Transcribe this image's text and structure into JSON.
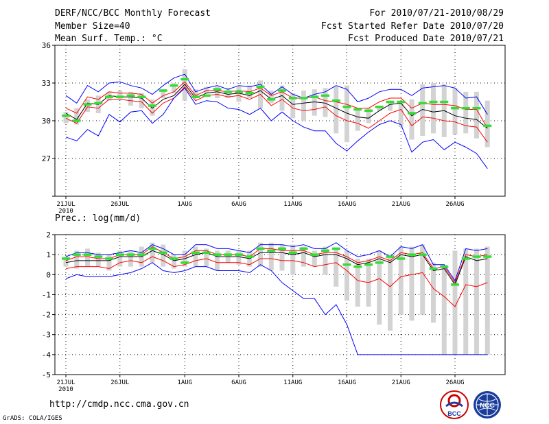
{
  "header": {
    "title": "DERF/NCC/BCC Monthly Forecast",
    "member_size": "Member Size=40",
    "variable": "Mean Surf. Temp.: °C",
    "period": "For 2010/07/21-2010/08/29",
    "start_date": "Fcst Started Refer Date 2010/07/20",
    "produced_date": "Fcst Produced Date 2010/07/21"
  },
  "footer": {
    "url": "http://cmdp.ncc.cma.gov.cn",
    "grads": "GrADS: COLA/IGES",
    "logo_bcc": "BCC",
    "logo_ncc": "NCC"
  },
  "colors": {
    "ensemble_bar": "#d3d3d3",
    "mean": "#000000",
    "spread": "#ff0000",
    "extremes": "#0000ff",
    "climatology": "#33dd33"
  },
  "chart_data": [
    {
      "type": "line",
      "title": "Mean Surf. Temp.: °C",
      "xlabel": "",
      "ylabel": "°C",
      "ylim": [
        24,
        36
      ],
      "yticks": [
        24,
        27,
        30,
        33,
        36
      ],
      "ytick_labels": [
        "",
        "27",
        "30",
        "33",
        "36"
      ],
      "x_tick_labels": [
        {
          "day": 1,
          "label": "21JUL",
          "sub": "2010"
        },
        {
          "day": 6,
          "label": "26JUL"
        },
        {
          "day": 12,
          "label": "1AUG"
        },
        {
          "day": 17,
          "label": "6AUG"
        },
        {
          "day": 22,
          "label": "11AUG"
        },
        {
          "day": 27,
          "label": "16AUG"
        },
        {
          "day": 32,
          "label": "21AUG"
        },
        {
          "day": 37,
          "label": "26AUG"
        }
      ],
      "grid": true,
      "x": [
        1,
        2,
        3,
        4,
        5,
        6,
        7,
        8,
        9,
        10,
        11,
        12,
        13,
        14,
        15,
        16,
        17,
        18,
        19,
        20,
        21,
        22,
        23,
        24,
        25,
        26,
        27,
        28,
        29,
        30,
        31,
        32,
        33,
        34,
        35,
        36,
        37,
        38,
        39,
        40
      ],
      "box_low": [
        29.8,
        29.7,
        30.7,
        30.6,
        31.6,
        31.7,
        31.2,
        31.0,
        30.4,
        31.8,
        32.2,
        31.6,
        32.0,
        32.2,
        31.8,
        31.8,
        31.5,
        31.8,
        31.0,
        31.4,
        30.8,
        30.2,
        30.0,
        30.4,
        30.3,
        29.0,
        28.3,
        29.2,
        29.8,
        30.8,
        30.8,
        29.5,
        28.5,
        28.8,
        29.0,
        28.7,
        28.9,
        29.0,
        28.6,
        27.9
      ],
      "box_high": [
        30.7,
        31.0,
        31.7,
        32.0,
        32.3,
        32.4,
        32.3,
        32.2,
        31.7,
        32.5,
        33.0,
        34.1,
        32.5,
        32.7,
        32.7,
        32.6,
        32.7,
        32.8,
        33.2,
        32.4,
        32.8,
        32.2,
        32.4,
        32.5,
        32.6,
        32.7,
        32.8,
        31.0,
        31.0,
        31.2,
        31.6,
        31.4,
        31.7,
        32.9,
        33.0,
        32.9,
        32.6,
        32.3,
        32.3,
        31.6
      ],
      "series": [
        {
          "name": "ensemble max",
          "color": "#0000ff",
          "values": [
            32.0,
            31.4,
            32.8,
            32.3,
            33.0,
            33.1,
            32.8,
            32.6,
            32.1,
            32.8,
            33.4,
            33.7,
            32.3,
            32.6,
            32.8,
            32.5,
            32.8,
            32.7,
            32.9,
            32.1,
            32.7,
            32.1,
            31.8,
            32.1,
            32.3,
            32.8,
            32.5,
            31.5,
            31.8,
            32.3,
            32.5,
            32.5,
            32.0,
            32.6,
            32.7,
            32.8,
            32.6,
            31.8,
            31.9,
            30.5
          ]
        },
        {
          "name": "ensemble mean + sd",
          "color": "#ff0000",
          "values": [
            31.0,
            30.6,
            31.9,
            31.7,
            32.3,
            32.2,
            32.2,
            32.1,
            31.4,
            32.0,
            32.3,
            33.1,
            32.0,
            32.4,
            32.4,
            32.3,
            32.4,
            32.3,
            32.6,
            32.0,
            32.3,
            31.8,
            31.8,
            31.9,
            31.6,
            31.5,
            31.3,
            31.0,
            31.0,
            31.5,
            31.8,
            31.8,
            31.0,
            31.4,
            31.3,
            31.3,
            31.2,
            30.9,
            30.9,
            29.4
          ]
        },
        {
          "name": "ensemble mean",
          "color": "#000000",
          "values": [
            30.6,
            30.1,
            31.4,
            31.3,
            32.0,
            31.9,
            31.9,
            31.8,
            31.0,
            31.7,
            32.0,
            32.9,
            31.8,
            32.2,
            32.3,
            32.1,
            32.2,
            32.0,
            32.4,
            31.7,
            32.0,
            31.3,
            31.4,
            31.5,
            31.4,
            31.0,
            30.6,
            30.3,
            30.2,
            30.8,
            31.3,
            31.4,
            30.4,
            30.9,
            30.7,
            30.8,
            30.4,
            30.2,
            30.1,
            29.4
          ]
        },
        {
          "name": "ensemble mean - sd",
          "color": "#ff0000",
          "values": [
            30.2,
            29.8,
            31.1,
            31.0,
            31.7,
            31.7,
            31.6,
            31.5,
            30.6,
            31.4,
            31.8,
            32.7,
            31.6,
            32.0,
            32.1,
            31.9,
            32.0,
            31.7,
            32.1,
            31.2,
            31.7,
            31.0,
            30.8,
            30.9,
            31.1,
            30.4,
            30.0,
            29.8,
            29.4,
            30.0,
            30.6,
            30.9,
            29.6,
            30.3,
            30.2,
            30.0,
            29.9,
            29.6,
            29.5,
            28.3
          ]
        },
        {
          "name": "ensemble min",
          "color": "#0000ff",
          "values": [
            28.7,
            28.4,
            29.3,
            28.8,
            30.5,
            29.9,
            30.7,
            30.8,
            29.8,
            30.5,
            31.8,
            32.6,
            31.3,
            31.6,
            31.5,
            31.0,
            30.9,
            30.5,
            31.0,
            30.0,
            30.7,
            30.0,
            29.5,
            29.2,
            29.2,
            28.2,
            27.6,
            28.4,
            29.1,
            29.7,
            30.0,
            29.7,
            27.5,
            28.3,
            28.5,
            27.7,
            28.3,
            27.9,
            27.4,
            26.2
          ]
        },
        {
          "name": "climatology",
          "color": "#33dd33",
          "style": "dash",
          "values": [
            30.4,
            30.0,
            31.3,
            31.4,
            31.9,
            31.9,
            32.0,
            31.9,
            31.2,
            32.4,
            32.8,
            33.3,
            31.9,
            32.0,
            32.5,
            32.3,
            32.3,
            32.2,
            32.7,
            31.7,
            32.4,
            31.8,
            31.8,
            31.9,
            32.0,
            31.6,
            31.1,
            30.9,
            30.8,
            31.1,
            31.5,
            31.5,
            30.6,
            31.4,
            31.5,
            31.5,
            31.0,
            31.0,
            31.0,
            29.6
          ]
        }
      ]
    },
    {
      "type": "line",
      "title": "Prec.: log(mm/d)",
      "xlabel": "",
      "ylabel": "log(mm/d)",
      "ylim": [
        -5,
        2
      ],
      "yticks": [
        -5,
        -4,
        -3,
        -2,
        -1,
        0,
        1,
        2
      ],
      "ytick_labels": [
        "-5",
        "-4",
        "-3",
        "-2",
        "-1",
        "0",
        "1",
        "2"
      ],
      "x_tick_labels": [
        {
          "day": 1,
          "label": "21JUL",
          "sub": "2010"
        },
        {
          "day": 6,
          "label": "26JUL"
        },
        {
          "day": 12,
          "label": "1AUG"
        },
        {
          "day": 17,
          "label": "6AUG"
        },
        {
          "day": 22,
          "label": "11AUG"
        },
        {
          "day": 27,
          "label": "16AUG"
        },
        {
          "day": 32,
          "label": "21AUG"
        },
        {
          "day": 37,
          "label": "26AUG"
        }
      ],
      "grid": true,
      "x": [
        1,
        2,
        3,
        4,
        5,
        6,
        7,
        8,
        9,
        10,
        11,
        12,
        13,
        14,
        15,
        16,
        17,
        18,
        19,
        20,
        21,
        22,
        23,
        24,
        25,
        26,
        27,
        28,
        29,
        30,
        31,
        32,
        33,
        34,
        35,
        36,
        37,
        38,
        39,
        40
      ],
      "box_low": [
        0.4,
        0.3,
        0.4,
        0.4,
        0.2,
        0.4,
        0.4,
        0.4,
        0.6,
        0.4,
        0.3,
        0.4,
        0.4,
        0.4,
        0.2,
        0.6,
        0.5,
        0.4,
        0.4,
        0.2,
        0.2,
        0.0,
        0.4,
        0.4,
        0.0,
        -0.6,
        -1.3,
        -1.6,
        -1.6,
        -2.5,
        -2.8,
        -2.0,
        -2.3,
        -2.0,
        -2.4,
        -4.0,
        -4.0,
        -4.0,
        -4.0,
        -4.0
      ],
      "box_high": [
        0.9,
        1.2,
        1.3,
        1.1,
        1.0,
        1.2,
        1.2,
        1.4,
        1.6,
        1.5,
        1.0,
        1.2,
        1.4,
        1.3,
        1.2,
        1.2,
        1.2,
        1.2,
        1.6,
        1.6,
        1.5,
        1.5,
        1.4,
        1.2,
        1.4,
        1.3,
        1.2,
        0.8,
        0.8,
        1.2,
        1.0,
        1.4,
        1.4,
        1.5,
        0.6,
        0.5,
        1.2,
        1.3,
        1.3,
        1.4
      ],
      "series": [
        {
          "name": "ensemble max",
          "color": "#0000ff",
          "values": [
            0.9,
            1.1,
            1.1,
            1.0,
            1.0,
            1.1,
            1.2,
            1.1,
            1.5,
            1.3,
            1.0,
            1.0,
            1.5,
            1.5,
            1.3,
            1.3,
            1.2,
            1.1,
            1.5,
            1.5,
            1.5,
            1.4,
            1.5,
            1.3,
            1.3,
            1.6,
            1.2,
            0.9,
            1.0,
            1.2,
            0.9,
            1.4,
            1.3,
            1.5,
            0.5,
            0.5,
            -0.3,
            1.3,
            1.2,
            1.3
          ]
        },
        {
          "name": "ensemble mean + sd",
          "color": "#ff0000",
          "values": [
            0.7,
            0.9,
            0.9,
            0.8,
            0.8,
            1.0,
            1.0,
            1.0,
            1.4,
            1.1,
            0.8,
            0.9,
            1.2,
            1.2,
            1.0,
            1.0,
            1.0,
            0.9,
            1.3,
            1.3,
            1.2,
            1.2,
            1.2,
            1.0,
            1.1,
            1.1,
            0.9,
            0.6,
            0.7,
            0.9,
            0.7,
            1.1,
            1.0,
            1.1,
            0.3,
            0.4,
            -0.4,
            1.0,
            0.9,
            1.0
          ]
        },
        {
          "name": "ensemble mean",
          "color": "#000000",
          "values": [
            0.6,
            0.7,
            0.7,
            0.7,
            0.7,
            0.9,
            0.9,
            0.9,
            1.2,
            1.0,
            0.7,
            0.8,
            1.0,
            1.1,
            0.9,
            0.9,
            0.9,
            0.8,
            1.1,
            1.1,
            1.1,
            1.0,
            1.1,
            0.9,
            1.0,
            1.0,
            0.8,
            0.5,
            0.6,
            0.8,
            0.6,
            1.0,
            0.9,
            1.0,
            0.2,
            0.3,
            -0.5,
            0.9,
            0.7,
            0.8
          ]
        },
        {
          "name": "ensemble mean - sd",
          "color": "#ff0000",
          "values": [
            0.3,
            0.4,
            0.4,
            0.4,
            0.3,
            0.6,
            0.7,
            0.6,
            0.9,
            0.7,
            0.4,
            0.5,
            0.7,
            0.8,
            0.6,
            0.6,
            0.6,
            0.5,
            0.8,
            0.8,
            0.7,
            0.7,
            0.6,
            0.4,
            0.5,
            0.6,
            0.2,
            -0.3,
            -0.4,
            -0.2,
            -0.6,
            -0.1,
            0.0,
            0.1,
            -0.7,
            -1.1,
            -1.6,
            -0.5,
            -0.6,
            -0.4
          ]
        },
        {
          "name": "ensemble min",
          "color": "#0000ff",
          "values": [
            -0.2,
            0.0,
            -0.1,
            -0.1,
            -0.1,
            0.0,
            0.1,
            0.3,
            0.6,
            0.2,
            0.1,
            0.2,
            0.4,
            0.4,
            0.2,
            0.2,
            0.2,
            0.1,
            0.5,
            0.2,
            -0.4,
            -0.8,
            -1.2,
            -1.2,
            -2.0,
            -1.5,
            -2.5,
            -4.0,
            -4.0,
            -4.0,
            -4.0,
            -4.0,
            -4.0,
            -4.0,
            -4.0,
            -4.0,
            -4.0,
            -4.0,
            -4.0,
            -4.0
          ]
        },
        {
          "name": "climatology",
          "color": "#33dd33",
          "style": "dash",
          "values": [
            0.8,
            1.0,
            1.0,
            0.9,
            0.8,
            1.0,
            1.0,
            1.0,
            1.3,
            1.1,
            0.8,
            0.6,
            1.1,
            1.1,
            1.0,
            1.0,
            1.0,
            0.9,
            1.3,
            1.2,
            1.3,
            1.1,
            1.3,
            1.0,
            1.2,
            1.3,
            0.5,
            0.4,
            0.5,
            0.6,
            0.9,
            0.8,
            1.0,
            1.0,
            0.3,
            0.4,
            -0.5,
            0.8,
            0.9,
            0.9
          ]
        }
      ]
    }
  ]
}
